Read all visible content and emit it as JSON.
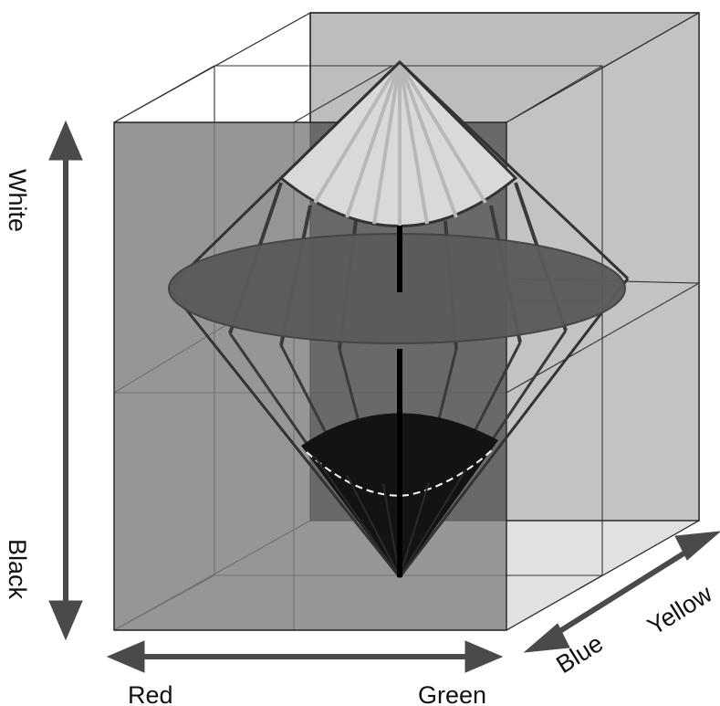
{
  "labels": {
    "white": "White",
    "black": "Black",
    "red": "Red",
    "green": "Green",
    "blue": "Blue",
    "yellow": "Yellow"
  },
  "colors": {
    "back_panel": "#bdbdbd",
    "front_panel": "#7f7f7f",
    "overlap_panel": "#5a5a5a",
    "top_cap": "#d8d8d8",
    "middle_disk": "#5c5c5c",
    "bottom_cap": "#131313",
    "arrows": "#4a4a4a",
    "lines": "#222222"
  }
}
